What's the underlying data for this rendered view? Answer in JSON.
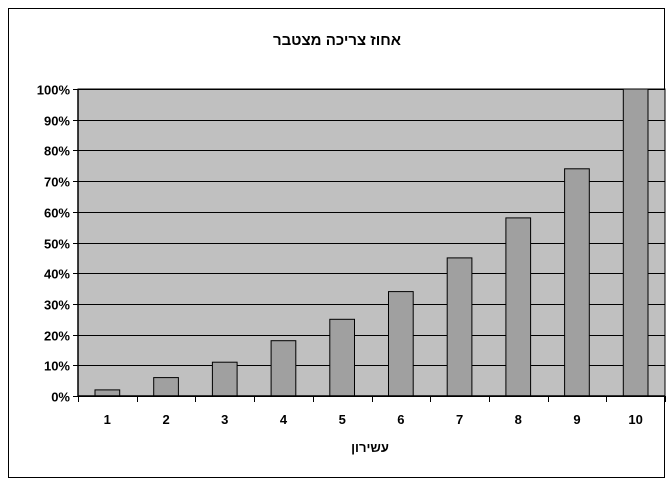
{
  "chart_data": {
    "type": "bar",
    "title": "אחוז צריכה מצטבר",
    "xlabel": "עשירון",
    "ylabel": "",
    "categories": [
      "1",
      "2",
      "3",
      "4",
      "5",
      "6",
      "7",
      "8",
      "9",
      "10"
    ],
    "values": [
      0.02,
      0.06,
      0.11,
      0.18,
      0.25,
      0.34,
      0.45,
      0.58,
      0.74,
      1.0
    ],
    "ylim": [
      0,
      1
    ],
    "yticks": [
      0,
      0.1,
      0.2,
      0.3,
      0.4,
      0.5,
      0.6,
      0.7,
      0.8,
      0.9,
      1.0
    ],
    "ytick_labels": [
      "0%",
      "10%",
      "20%",
      "30%",
      "40%",
      "50%",
      "60%",
      "70%",
      "80%",
      "90%",
      "100%"
    ],
    "grid": true,
    "legend": "none",
    "colors": {
      "plot_background": "#c0c0c0",
      "bar_fill": "#a0a0a0",
      "bar_stroke": "#000000",
      "gridline": "#000000"
    }
  }
}
